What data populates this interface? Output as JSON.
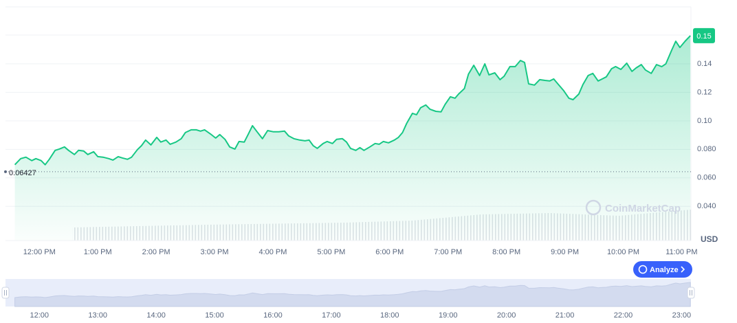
{
  "chart_data": {
    "type": "line",
    "series": [
      {
        "color": "#16c784",
        "x": [
          11.58,
          11.68,
          11.77,
          11.87,
          11.94,
          12.03,
          12.1,
          12.17,
          12.27,
          12.34,
          12.43,
          12.5,
          12.6,
          12.67,
          12.76,
          12.83,
          12.93,
          13.0,
          13.09,
          13.19,
          13.26,
          13.35,
          13.42,
          13.51,
          13.58,
          13.68,
          13.75,
          13.82,
          13.91,
          14.01,
          14.08,
          14.17,
          14.24,
          14.34,
          14.43,
          14.5,
          14.6,
          14.69,
          14.76,
          14.83,
          14.93,
          15.02,
          15.09,
          15.18,
          15.26,
          15.35,
          15.42,
          15.51,
          15.58,
          15.65,
          15.72,
          15.82,
          15.91,
          16.01,
          16.1,
          16.2,
          16.27,
          16.36,
          16.46,
          16.55,
          16.62,
          16.69,
          16.76,
          16.86,
          16.93,
          17.02,
          17.09,
          17.19,
          17.26,
          17.33,
          17.42,
          17.49,
          17.56,
          17.66,
          17.75,
          17.82,
          17.89,
          17.98,
          18.08,
          18.15,
          18.22,
          18.29,
          18.39,
          18.46,
          18.53,
          18.62,
          18.69,
          18.79,
          18.88,
          18.95,
          19.04,
          19.12,
          19.18,
          19.28,
          19.35,
          19.44,
          19.54,
          19.63,
          19.7,
          19.8,
          19.89,
          19.96,
          20.06,
          20.15,
          20.24,
          20.31,
          20.38,
          20.48,
          20.57,
          20.66,
          20.74,
          20.81,
          20.88,
          20.98,
          21.07,
          21.14,
          21.24,
          21.31,
          21.4,
          21.48,
          21.57,
          21.64,
          21.71,
          21.8,
          21.87,
          21.96,
          22.06,
          22.15,
          22.22,
          22.31,
          22.38,
          22.48,
          22.57,
          22.66,
          22.73,
          22.83,
          22.9,
          22.97,
          23.06,
          23.15
        ],
        "values": [
          0.0692,
          0.0735,
          0.0745,
          0.0721,
          0.0735,
          0.0721,
          0.0692,
          0.073,
          0.0793,
          0.0802,
          0.0817,
          0.0793,
          0.0764,
          0.0793,
          0.0788,
          0.0764,
          0.0783,
          0.0749,
          0.0745,
          0.0735,
          0.0725,
          0.0749,
          0.074,
          0.073,
          0.0745,
          0.0798,
          0.0826,
          0.0865,
          0.0831,
          0.0884,
          0.0851,
          0.0865,
          0.0836,
          0.0851,
          0.0875,
          0.0918,
          0.0937,
          0.0937,
          0.0928,
          0.0937,
          0.0908,
          0.0879,
          0.0904,
          0.087,
          0.0817,
          0.0802,
          0.0855,
          0.0851,
          0.0908,
          0.0966,
          0.0928,
          0.0875,
          0.0932,
          0.0923,
          0.0923,
          0.0928,
          0.0894,
          0.0875,
          0.0865,
          0.086,
          0.0865,
          0.0826,
          0.0807,
          0.0841,
          0.0855,
          0.0841,
          0.087,
          0.0875,
          0.0851,
          0.0807,
          0.0793,
          0.0812,
          0.0793,
          0.0817,
          0.0841,
          0.0836,
          0.0855,
          0.0846,
          0.0865,
          0.0884,
          0.0918,
          0.0981,
          0.1053,
          0.1043,
          0.1092,
          0.1111,
          0.1082,
          0.1067,
          0.1063,
          0.1116,
          0.1169,
          0.1159,
          0.1188,
          0.1227,
          0.1328,
          0.139,
          0.1318,
          0.14,
          0.1323,
          0.1337,
          0.1289,
          0.1313,
          0.1381,
          0.1381,
          0.1424,
          0.141,
          0.126,
          0.1251,
          0.1289,
          0.1284,
          0.128,
          0.1294,
          0.126,
          0.1212,
          0.1159,
          0.1149,
          0.1188,
          0.1255,
          0.1318,
          0.1333,
          0.128,
          0.1294,
          0.1309,
          0.1366,
          0.1381,
          0.1361,
          0.1405,
          0.1347,
          0.1371,
          0.1395,
          0.1357,
          0.1333,
          0.1395,
          0.1381,
          0.14,
          0.1496,
          0.1559,
          0.1515,
          0.1559,
          0.1598
        ]
      }
    ],
    "xlim": [
      11.42,
      23.16
    ],
    "xticks": [
      {
        "value": 12,
        "label": "12:00 PM"
      },
      {
        "value": 13,
        "label": "1:00 PM"
      },
      {
        "value": 14,
        "label": "2:00 PM"
      },
      {
        "value": 15,
        "label": "3:00 PM"
      },
      {
        "value": 16,
        "label": "4:00 PM"
      },
      {
        "value": 17,
        "label": "5:00 PM"
      },
      {
        "value": 18,
        "label": "6:00 PM"
      },
      {
        "value": 19,
        "label": "7:00 PM"
      },
      {
        "value": 20,
        "label": "8:00 PM"
      },
      {
        "value": 21,
        "label": "9:00 PM"
      },
      {
        "value": 22,
        "label": "10:00 PM"
      },
      {
        "value": 23,
        "label": "11:00 PM"
      }
    ],
    "navigator_ticks": [
      {
        "value": 12,
        "label": "12:00"
      },
      {
        "value": 13,
        "label": "13:00"
      },
      {
        "value": 14,
        "label": "14:00"
      },
      {
        "value": 15,
        "label": "15:00"
      },
      {
        "value": 16,
        "label": "16:00"
      },
      {
        "value": 17,
        "label": "17:00"
      },
      {
        "value": 18,
        "label": "18:00"
      },
      {
        "value": 19,
        "label": "19:00"
      },
      {
        "value": 20,
        "label": "20:00"
      },
      {
        "value": 21,
        "label": "21:00"
      },
      {
        "value": 22,
        "label": "22:00"
      },
      {
        "value": 23,
        "label": "23:00"
      }
    ],
    "ylim": [
      0.016,
      0.18
    ],
    "yticks": [
      {
        "value": 0.04,
        "label": "0.040"
      },
      {
        "value": 0.06,
        "label": "0.060"
      },
      {
        "value": 0.08,
        "label": "0.080"
      },
      {
        "value": 0.1,
        "label": "0.10"
      },
      0.12,
      0.14
    ],
    "grid": true,
    "reference_line": 0.06427,
    "price_label": 0.15,
    "unit": "USD",
    "watermark": "CoinMarketCap",
    "button": "Analyze"
  }
}
